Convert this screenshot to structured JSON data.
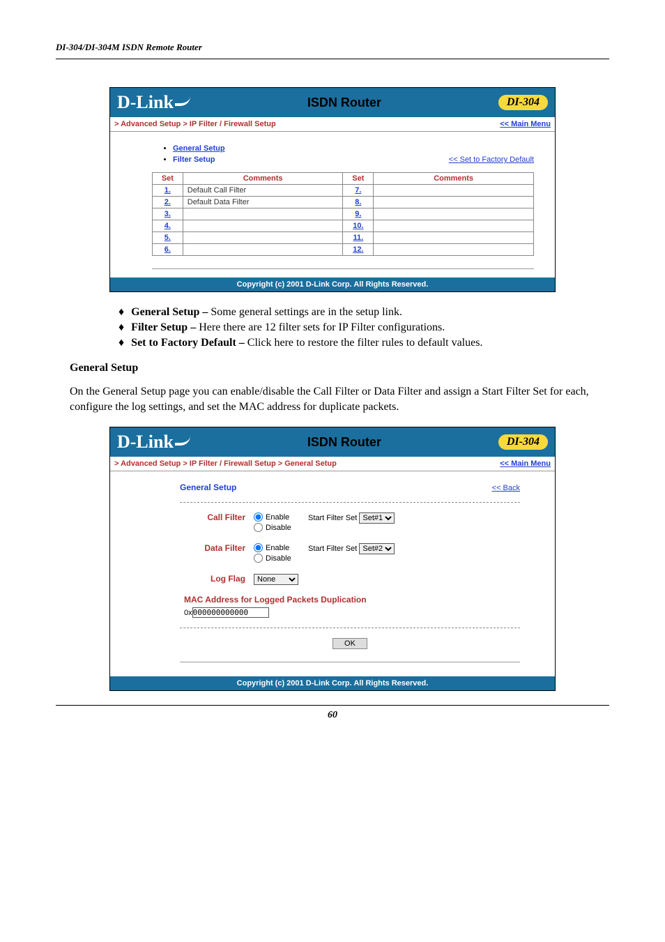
{
  "doc": {
    "header": "DI-304/DI-304M ISDN Remote Router",
    "pageNumber": "60"
  },
  "ss1": {
    "logo": "D-Link",
    "title": "ISDN Router",
    "model": "DI-304",
    "breadcrumb": "> Advanced Setup > IP Filter / Firewall Setup",
    "mainMenu": "<< Main Menu",
    "generalSetup": "General Setup",
    "filterSetup": "Filter Setup",
    "factoryDefault": "<< Set to Factory Default",
    "headers": {
      "set": "Set",
      "comments": "Comments"
    },
    "rowsLeft": [
      {
        "n": "1.",
        "c": "Default Call Filter"
      },
      {
        "n": "2.",
        "c": "Default Data Filter"
      },
      {
        "n": "3.",
        "c": ""
      },
      {
        "n": "4.",
        "c": ""
      },
      {
        "n": "5.",
        "c": ""
      },
      {
        "n": "6.",
        "c": ""
      }
    ],
    "rowsRight": [
      {
        "n": "7.",
        "c": ""
      },
      {
        "n": "8.",
        "c": ""
      },
      {
        "n": "9.",
        "c": ""
      },
      {
        "n": "10.",
        "c": ""
      },
      {
        "n": "11.",
        "c": ""
      },
      {
        "n": "12.",
        "c": ""
      }
    ],
    "footer": "Copyright (c) 2001 D-Link Corp. All Rights Reserved."
  },
  "bodyText": {
    "b1Title": "General Setup – ",
    "b1Body": "Some general settings are in the setup link.",
    "b2Title": "Filter Setup – ",
    "b2Body": "Here there are 12 filter sets for IP Filter configurations.",
    "b3Title": "Set to Factory Default – ",
    "b3Body": "Click here to restore the filter rules to default values.",
    "heading": "General Setup",
    "para": "On the General Setup page you can enable/disable the Call Filter or Data Filter and assign a Start Filter Set for each, configure the log settings, and set the MAC address for duplicate packets."
  },
  "ss2": {
    "breadcrumb": "> Advanced Setup > IP Filter / Firewall Setup > General Setup",
    "mainMenu": "<< Main Menu",
    "title": "General Setup",
    "back": "<< Back",
    "callFilter": "Call Filter",
    "dataFilter": "Data Filter",
    "enable": "Enable",
    "disable": "Disable",
    "startFilterSet": "Start Filter Set",
    "set1": "Set#1",
    "set2": "Set#2",
    "logFlag": "Log Flag",
    "logFlagValue": "None",
    "macTitle": "MAC Address for Logged Packets Duplication",
    "macPrefix": "0x",
    "macValue": "000000000000",
    "ok": "OK",
    "footer": "Copyright (c) 2001 D-Link Corp. All Rights Reserved."
  }
}
